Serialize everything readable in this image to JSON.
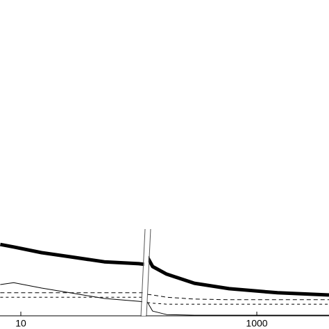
{
  "chart_data": {
    "type": "line",
    "x_scale": "log",
    "x": [
      6.7,
      8.7,
      15,
      26,
      51,
      100,
      111,
      114,
      118,
      131,
      172,
      296,
      582,
      1500,
      4090
    ],
    "xlim": [
      6.66,
      4090
    ],
    "xticks": [
      10,
      1000
    ],
    "ylim": [
      0,
      100
    ],
    "series": [
      {
        "color": "#000000",
        "width": 5,
        "dash": "none",
        "values": [
          22.6,
          21.8,
          20.0,
          18.7,
          17.1,
          16.5,
          16.3,
          null,
          18.7,
          15.6,
          13.2,
          10.3,
          8.6,
          7.3,
          6.6
        ]
      },
      {
        "color": "#000000",
        "width": 1,
        "dash": "none",
        "values": [
          9.9,
          10.5,
          8.8,
          7.3,
          5.5,
          4.6,
          4.4,
          null,
          4.4,
          1.5,
          0.4,
          0.2,
          0.2,
          0.2,
          0.2
        ]
      },
      {
        "color": "#000000",
        "width": 1,
        "dash": "6 4",
        "values": [
          7.3,
          7.3,
          7.3,
          7.3,
          7.3,
          7.3,
          7.3,
          null,
          6.8,
          6.6,
          5.9,
          5.3,
          5.1,
          5.1,
          5.1
        ]
      },
      {
        "color": "#000000",
        "width": 1,
        "dash": "4 4",
        "values": [
          5.9,
          5.9,
          5.9,
          5.9,
          5.9,
          5.9,
          5.9,
          null,
          4.2,
          4.0,
          3.7,
          3.7,
          3.7,
          3.7,
          3.7
        ]
      }
    ]
  }
}
